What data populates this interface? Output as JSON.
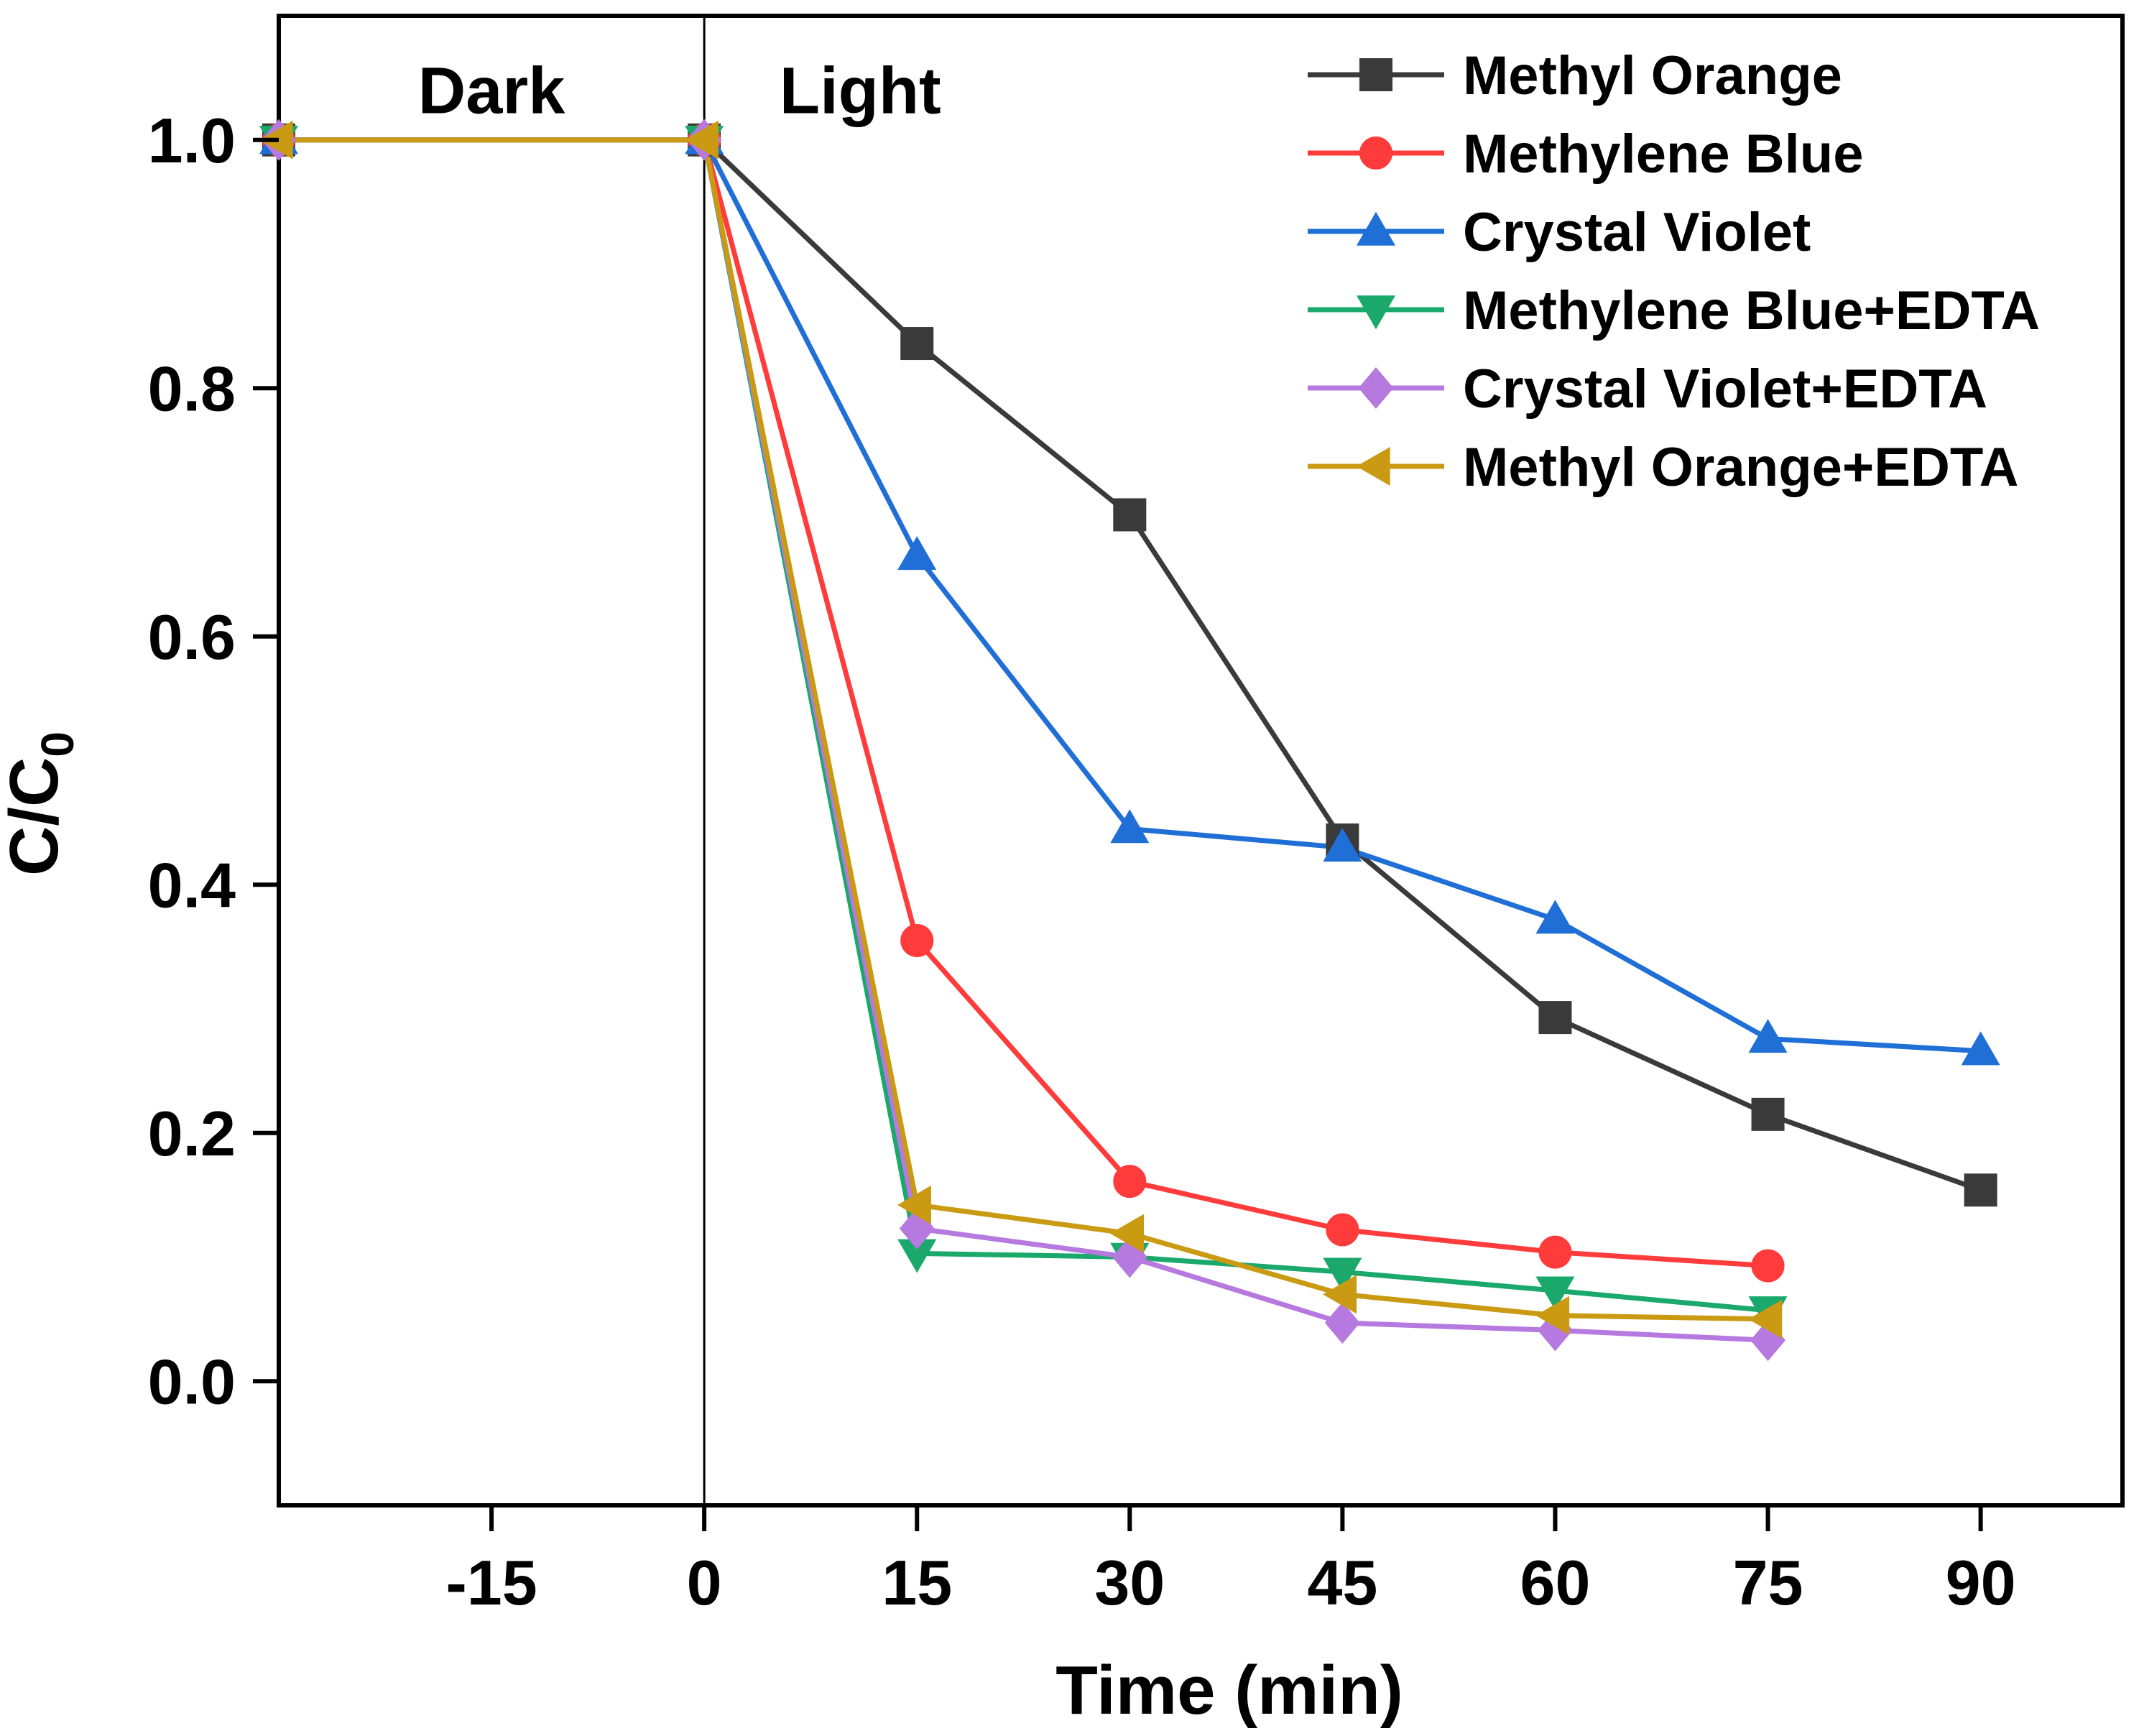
{
  "chart_data": {
    "type": "line",
    "title": "",
    "xlabel": "Time (min)",
    "ylabel": "C/C",
    "ylabel_subscript": "0",
    "xlim": [
      -30,
      100
    ],
    "ylim": [
      -0.1,
      1.1
    ],
    "xticks": [
      -15,
      0,
      15,
      30,
      45,
      60,
      75,
      90
    ],
    "xtick_labels": [
      "-15",
      "0",
      "15",
      "30",
      "45",
      "60",
      "75",
      "90"
    ],
    "yticks": [
      0.0,
      0.2,
      0.4,
      0.6,
      0.8,
      1.0
    ],
    "ytick_labels": [
      "0.0",
      "0.2",
      "0.4",
      "0.6",
      "0.8",
      "1.0"
    ],
    "grid": false,
    "legend_position": "top-right",
    "annotations": [
      {
        "text": "Dark",
        "x": -15,
        "y": 1.04
      },
      {
        "text": "Light",
        "x": 11,
        "y": 1.04
      }
    ],
    "divider_x": 0,
    "series": [
      {
        "name": "Methyl Orange",
        "color": "#3a3a3a",
        "marker": "square",
        "x": [
          -30,
          0,
          15,
          30,
          45,
          60,
          75,
          90
        ],
        "y": [
          1.0,
          1.0,
          0.836,
          0.698,
          0.436,
          0.293,
          0.215,
          0.154
        ]
      },
      {
        "name": "Methylene Blue",
        "color": "#ff3b3b",
        "marker": "circle",
        "x": [
          -30,
          0,
          15,
          30,
          45,
          60,
          75
        ],
        "y": [
          1.0,
          1.0,
          0.355,
          0.161,
          0.122,
          0.104,
          0.093
        ]
      },
      {
        "name": "Crystal Violet",
        "color": "#1f6fd6",
        "marker": "triangle-up",
        "x": [
          -30,
          0,
          15,
          30,
          45,
          60,
          75,
          90
        ],
        "y": [
          1.0,
          1.0,
          0.665,
          0.445,
          0.43,
          0.372,
          0.276,
          0.266
        ]
      },
      {
        "name": "Methylene Blue+EDTA",
        "color": "#1aa96b",
        "marker": "triangle-down",
        "x": [
          -30,
          0,
          15,
          30,
          45,
          60,
          75
        ],
        "y": [
          1.0,
          1.0,
          0.103,
          0.1,
          0.088,
          0.073,
          0.057
        ]
      },
      {
        "name": "Crystal Violet+EDTA",
        "color": "#b579e0",
        "marker": "diamond",
        "x": [
          -30,
          0,
          15,
          30,
          45,
          60,
          75
        ],
        "y": [
          1.0,
          1.0,
          0.123,
          0.1,
          0.047,
          0.041,
          0.033
        ]
      },
      {
        "name": "Methyl Orange+EDTA",
        "color": "#c99a12",
        "marker": "triangle-left",
        "x": [
          -30,
          0,
          15,
          30,
          45,
          60,
          75
        ],
        "y": [
          1.0,
          1.0,
          0.142,
          0.119,
          0.07,
          0.053,
          0.05
        ]
      }
    ]
  }
}
